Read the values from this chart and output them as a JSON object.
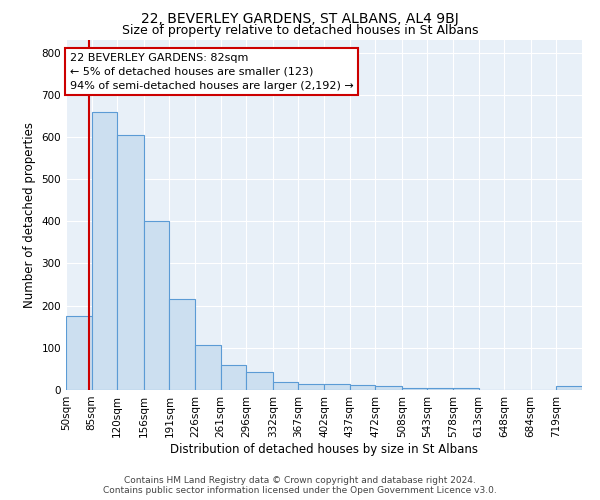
{
  "title": "22, BEVERLEY GARDENS, ST ALBANS, AL4 9BJ",
  "subtitle": "Size of property relative to detached houses in St Albans",
  "xlabel": "Distribution of detached houses by size in St Albans",
  "ylabel": "Number of detached properties",
  "bin_edges": [
    50,
    85,
    120,
    156,
    191,
    226,
    261,
    296,
    332,
    367,
    402,
    437,
    472,
    508,
    543,
    578,
    613,
    648,
    684,
    719,
    754
  ],
  "bar_heights": [
    175,
    660,
    605,
    400,
    215,
    107,
    60,
    42,
    20,
    14,
    14,
    12,
    10,
    4,
    4,
    4,
    0,
    0,
    0,
    10
  ],
  "bar_color": "#ccdff0",
  "bar_edgecolor": "#5b9bd5",
  "property_size": 82,
  "property_line_color": "#cc0000",
  "annotation_line1": "22 BEVERLEY GARDENS: 82sqm",
  "annotation_line2": "← 5% of detached houses are smaller (123)",
  "annotation_line3": "94% of semi-detached houses are larger (2,192) →",
  "annotation_box_color": "#cc0000",
  "ylim": [
    0,
    830
  ],
  "yticks": [
    0,
    100,
    200,
    300,
    400,
    500,
    600,
    700,
    800
  ],
  "footer_line1": "Contains HM Land Registry data © Crown copyright and database right 2024.",
  "footer_line2": "Contains public sector information licensed under the Open Government Licence v3.0.",
  "background_color": "#e8f0f8",
  "grid_color": "#ffffff",
  "title_fontsize": 10,
  "subtitle_fontsize": 9,
  "axis_label_fontsize": 8.5,
  "tick_fontsize": 7.5,
  "annotation_fontsize": 8,
  "footer_fontsize": 6.5
}
